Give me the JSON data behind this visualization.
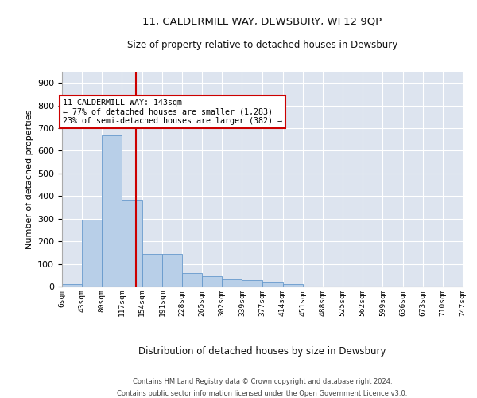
{
  "title1": "11, CALDERMILL WAY, DEWSBURY, WF12 9QP",
  "title2": "Size of property relative to detached houses in Dewsbury",
  "xlabel": "Distribution of detached houses by size in Dewsbury",
  "ylabel": "Number of detached properties",
  "bar_color": "#b8cfe8",
  "bar_edge_color": "#6699cc",
  "background_color": "#dde4ef",
  "grid_color": "#ffffff",
  "vline_color": "#cc0000",
  "vline_x": 143,
  "bin_edges": [
    6,
    43,
    80,
    117,
    154,
    191,
    228,
    265,
    302,
    339,
    377,
    414,
    451,
    488,
    525,
    562,
    599,
    636,
    673,
    710,
    747
  ],
  "bin_labels": [
    "6sqm",
    "43sqm",
    "80sqm",
    "117sqm",
    "154sqm",
    "191sqm",
    "228sqm",
    "265sqm",
    "302sqm",
    "339sqm",
    "377sqm",
    "414sqm",
    "451sqm",
    "488sqm",
    "525sqm",
    "562sqm",
    "599sqm",
    "636sqm",
    "673sqm",
    "710sqm",
    "747sqm"
  ],
  "bar_heights": [
    10,
    295,
    670,
    385,
    145,
    143,
    60,
    47,
    30,
    28,
    20,
    10,
    0,
    0,
    0,
    0,
    0,
    0,
    0,
    0
  ],
  "ylim": [
    0,
    950
  ],
  "yticks": [
    0,
    100,
    200,
    300,
    400,
    500,
    600,
    700,
    800,
    900
  ],
  "annotation_text": "11 CALDERMILL WAY: 143sqm\n← 77% of detached houses are smaller (1,283)\n23% of semi-detached houses are larger (382) →",
  "footer1": "Contains HM Land Registry data © Crown copyright and database right 2024.",
  "footer2": "Contains public sector information licensed under the Open Government Licence v3.0."
}
